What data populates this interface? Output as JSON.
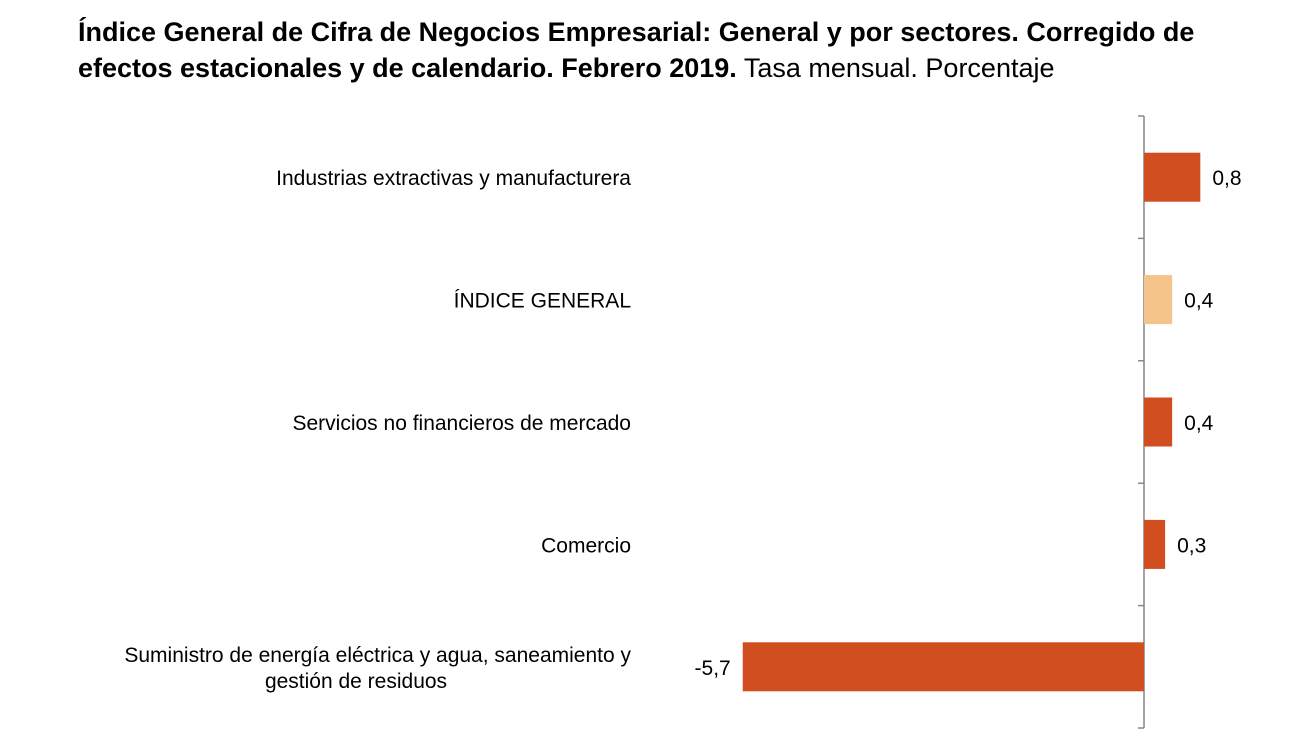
{
  "title": {
    "main": "Índice General de Cifra de Negocios Empresarial: General y por sectores. Corregido de efectos estacionales y de calendario. Febrero 2019.",
    "subtitle": "Tasa mensual. Porcentaje"
  },
  "chart_data": {
    "type": "bar",
    "orientation": "horizontal",
    "categories": [
      [
        "Industrias extractivas y manufacturera"
      ],
      [
        "ÍNDICE GENERAL"
      ],
      [
        "Servicios no financieros de mercado"
      ],
      [
        "Comercio"
      ],
      [
        "Suministro de energía eléctrica y agua, saneamiento y",
        "gestión de residuos"
      ]
    ],
    "values": [
      0.8,
      0.4,
      0.4,
      0.3,
      -5.7
    ],
    "value_labels": [
      "0,8",
      "0,4",
      "0,4",
      "0,3",
      "-5,7"
    ],
    "colors": [
      "#D04E20",
      "#F5C48A",
      "#D04E20",
      "#D04E20",
      "#D04E20"
    ],
    "xlim": [
      -5.7,
      0.8
    ],
    "grid": false,
    "legend": "none",
    "axis_color": "#888888"
  }
}
